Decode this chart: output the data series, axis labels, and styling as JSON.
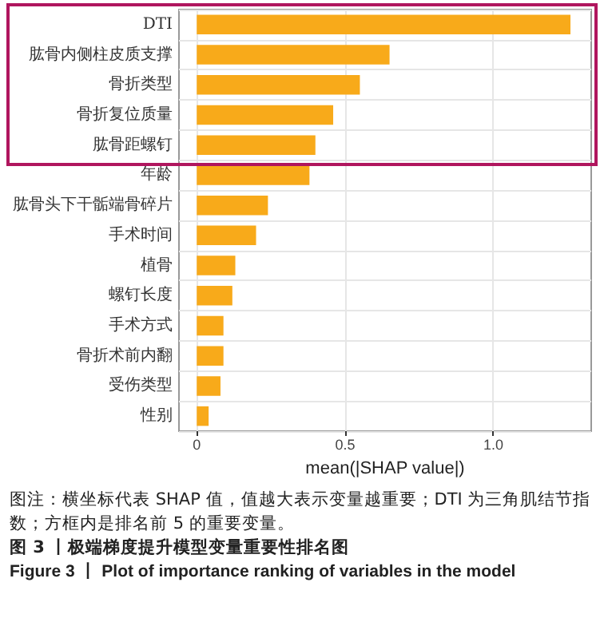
{
  "chart_data": {
    "type": "bar",
    "orientation": "horizontal",
    "title": "图 3 丨极端梯度提升模型变量重要性排名图",
    "subtitle": "Figure 3 丨 Plot of importance ranking of variables in the model",
    "xlabel": "mean(|SHAP value|)",
    "annotations": [
      "图注：横坐标代表 SHAP 值，值越大表示变量越重要；DTI 为三角肌结节指数；方框内是排名前 5 的重要变量。"
    ],
    "categories": [
      "DTI",
      "肱骨内侧柱皮质支撑",
      "骨折类型",
      "骨折复位质量",
      "肱骨距螺钉",
      "年龄",
      "肱骨头下干骺端骨碎片",
      "手术时间",
      "植骨",
      "螺钉长度",
      "手术方式",
      "骨折术前内翻",
      "受伤类型",
      "性别"
    ],
    "values": [
      1.26,
      0.65,
      0.55,
      0.46,
      0.4,
      0.38,
      0.24,
      0.2,
      0.13,
      0.12,
      0.09,
      0.09,
      0.08,
      0.04
    ],
    "color": "#f8aa1a",
    "xlim": [
      -0.06,
      1.33
    ],
    "xticks": [
      0,
      0.5,
      {
        "value": 1,
        "label": "1.0"
      }
    ],
    "grid": true
  }
}
